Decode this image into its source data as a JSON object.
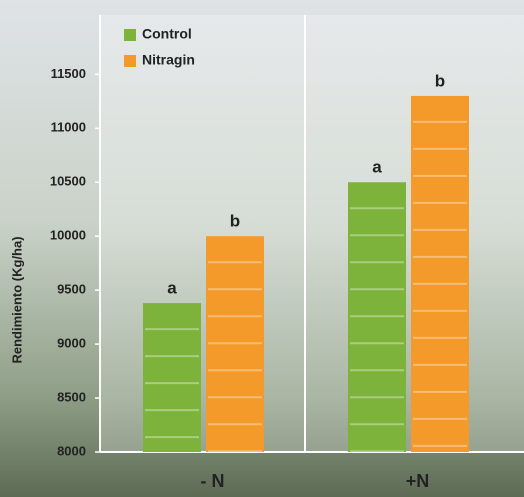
{
  "chart_data": {
    "type": "bar",
    "y_label": "Rendimiento (Kg/ha)",
    "categories": [
      "- N",
      "+N"
    ],
    "series": [
      {
        "name": "Control",
        "color": "#7db33a",
        "values": [
          9380,
          10500
        ],
        "letters": [
          "a",
          "a"
        ]
      },
      {
        "name": "Nitragin",
        "color": "#f39a2a",
        "values": [
          10000,
          11300
        ],
        "letters": [
          "b",
          "b"
        ]
      }
    ],
    "ylim": [
      8000,
      12050
    ],
    "yticks": [
      8000,
      8500,
      9000,
      9500,
      10000,
      10500,
      11000,
      11500
    ],
    "grid": false
  }
}
